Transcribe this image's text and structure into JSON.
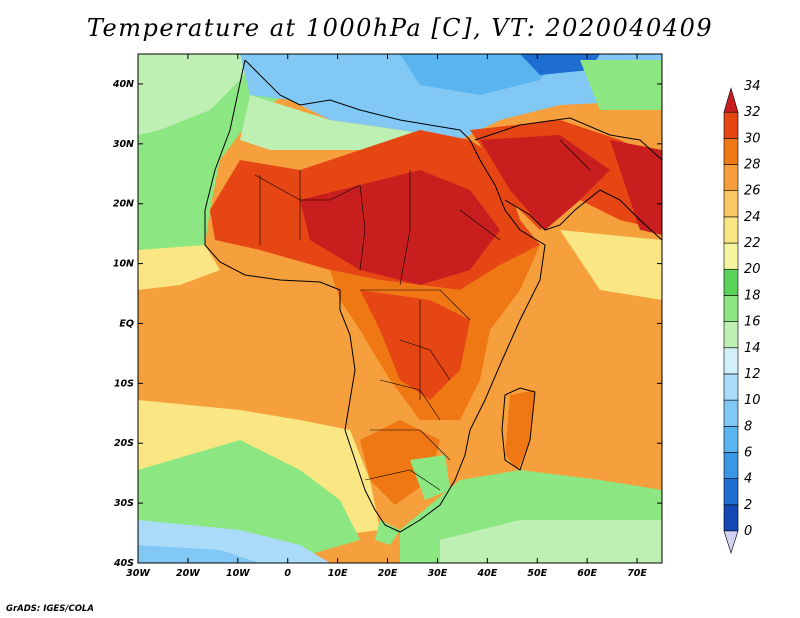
{
  "title": "Temperature at 1000hPa [C], VT: 2020040409",
  "credit": "GrADS: IGES/COLA",
  "map": {
    "lon_range": [
      -30,
      75
    ],
    "lat_range": [
      -40,
      45
    ],
    "lon_ticks": [
      "30W",
      "20W",
      "10W",
      "0",
      "10E",
      "20E",
      "30E",
      "40E",
      "50E",
      "60E",
      "70E"
    ],
    "lat_ticks": [
      "40S",
      "30S",
      "20S",
      "10S",
      "EQ",
      "10N",
      "20N",
      "30N",
      "40N"
    ],
    "lon_tick_values": [
      -30,
      -20,
      -10,
      0,
      10,
      20,
      30,
      40,
      50,
      60,
      70
    ],
    "lat_tick_values": [
      -40,
      -30,
      -20,
      -10,
      0,
      10,
      20,
      30,
      40
    ]
  },
  "colorbar": {
    "levels": [
      "0",
      "2",
      "4",
      "6",
      "8",
      "10",
      "12",
      "14",
      "16",
      "18",
      "20",
      "22",
      "24",
      "26",
      "28",
      "30",
      "32",
      "34"
    ],
    "colors": [
      "#1e1e8c",
      "#1446b4",
      "#1e6ed2",
      "#3c96e6",
      "#5ab4f0",
      "#82c8f5",
      "#aadcfa",
      "#d2f0fa",
      "#bef0b4",
      "#8ce682",
      "#5ad25a",
      "#f5f5a0",
      "#fae682",
      "#fac864",
      "#f5a03c",
      "#f07814",
      "#e64614",
      "#c81e1e"
    ]
  },
  "regions": {
    "ocean_north_atlantic": "#aadcfa",
    "ocean_tropical": "#f5a03c",
    "ocean_south": "#8ce682",
    "sahara": "#e64614",
    "sahel_hot": "#c81e1e",
    "arabia": "#e64614",
    "east_africa": "#f07814",
    "south_africa": "#f5a03c",
    "kalahari": "#f07814",
    "mediterranean": "#82c8f5",
    "europe": "#5ab4f0",
    "indian_ocean": "#f5a03c",
    "southern_indian": "#aadcfa"
  }
}
